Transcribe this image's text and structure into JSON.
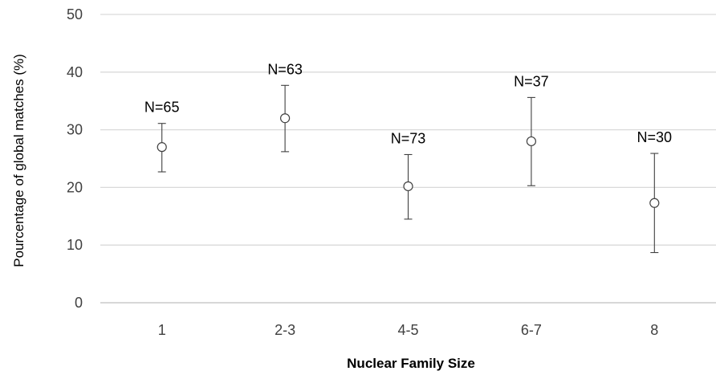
{
  "chart_data": {
    "type": "scatter",
    "title": "",
    "xlabel": "Nuclear  Family Size",
    "ylabel": "Pourcentage of global matches (%)",
    "categories": [
      "1",
      "2-3",
      "4-5",
      "6-7",
      "8"
    ],
    "values": [
      27,
      32,
      20.2,
      28,
      17.3
    ],
    "error_low": [
      22.7,
      26.2,
      14.5,
      20.3,
      8.7
    ],
    "error_high": [
      31.1,
      37.7,
      25.7,
      35.6,
      25.9
    ],
    "annotations": [
      "N=65",
      "N=63",
      "N=73",
      "N=37",
      "N=30"
    ],
    "ylim": [
      0,
      50
    ],
    "yticks": [
      "0",
      "10",
      "20",
      "30",
      "40",
      "50"
    ],
    "grid": true,
    "legend": "none",
    "colors": {
      "grid": "#d9d9d9",
      "axis": "#bfbfbf",
      "marker": "#404040",
      "errorbar": "#404040",
      "text": "#404040"
    }
  }
}
